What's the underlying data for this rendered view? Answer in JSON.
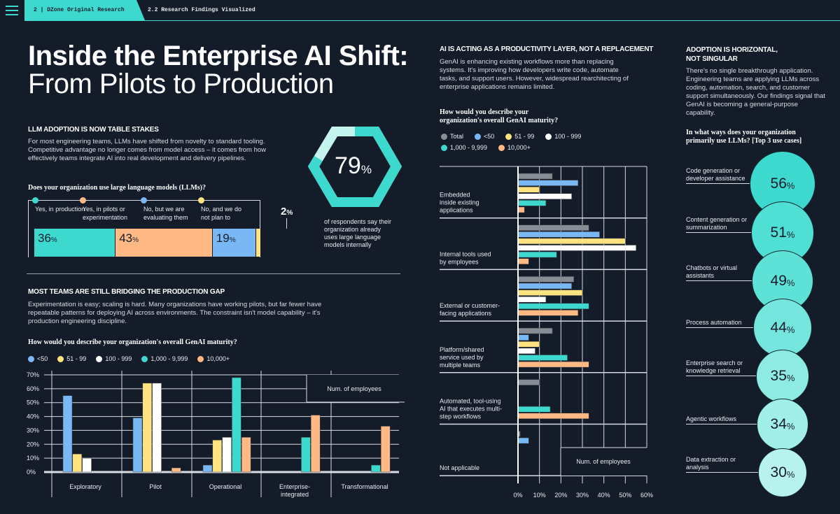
{
  "header": {
    "section_tab": "2 | DZone Original Research",
    "breadcrumb": "2.2 Research Findings Visualized"
  },
  "title": {
    "line1": "Inside the Enterprise AI Shift:",
    "line2": "From Pilots to Production"
  },
  "adoption": {
    "heading": "LLM ADOPTION IS NOW TABLE STAKES",
    "body": "For most engineering teams, LLMs have shifted from novelty to standard tooling. Competitive advantage no longer comes from model access – it comes from how effectively teams integrate AI into real development and delivery pipelines.",
    "question": "Does your organization use large language models (LLMs)?",
    "segments": [
      {
        "label": "Yes, in production",
        "value": 36,
        "color": "#3dd9cf"
      },
      {
        "label": "Yes, in pilots or experimentation",
        "value": 43,
        "color": "#ffb984"
      },
      {
        "label": "No, but we are evaluating them",
        "value": 19,
        "color": "#79b8f5"
      },
      {
        "label": "No, and we do not plan to",
        "value": 2,
        "color": "#ffe380"
      }
    ],
    "stat": {
      "value": "79",
      "unit": "%",
      "caption": "of respondents say their organization already uses large language models internally",
      "fraction": 0.79
    }
  },
  "maturity": {
    "heading": "MOST TEAMS ARE STILL BRIDGING THE PRODUCTION GAP",
    "body": "Experimentation is easy; scaling is hard. Many organizations have working pilots, but far fewer have repeatable patterns for deploying AI across environments. The constraint isn't model capability – it's production engineering discipline.",
    "question": "How would you describe your organization's overall GenAI maturity?"
  },
  "productivity": {
    "heading": "AI IS ACTING AS A PRODUCTIVITY LAYER, NOT A REPLACEMENT",
    "body": "GenAI is enhancing existing workflows more than replacing systems. It's improving how developers write code, automate tasks, and support users. However, widespread rearchitecting of enterprise applications remains limited.",
    "question": "How would you describe your organization's overall GenAI maturity?"
  },
  "horizontal": {
    "heading": "ADOPTION IS HORIZONTAL, NOT SINGULAR",
    "body": "There's no single breakthrough application. Engineering teams are applying LLMs across coding, automation, search, and customer support simultaneously. Our findings signal that GenAI is becoming a general-purpose capability.",
    "question": "In what ways does your organization primarily use LLMs? [Top 3 use cases]"
  },
  "chart_data": [
    {
      "type": "bar",
      "title": "",
      "xlabel": "",
      "ylabel": "",
      "ylim": [
        0,
        70
      ],
      "yticks": [
        "0%",
        "10%",
        "20%",
        "30%",
        "40%",
        "50%",
        "60%",
        "70%"
      ],
      "grid": true,
      "legend_title": "Num. of employees",
      "legend": "top",
      "categories": [
        "Exploratory",
        "Pilot",
        "Operational",
        "Enterprise-integrated",
        "Transformational"
      ],
      "series": [
        {
          "name": "<50",
          "color": "#79b8f5",
          "values": [
            55,
            39,
            5,
            0,
            0
          ]
        },
        {
          "name": "51 - 99",
          "color": "#ffe380",
          "values": [
            13,
            64,
            23,
            0,
            0
          ]
        },
        {
          "name": "100 - 999",
          "color": "#ffffff",
          "values": [
            10,
            64,
            25,
            0,
            0
          ]
        },
        {
          "name": "1,000 - 9,999",
          "color": "#3dd9cf",
          "values": [
            0,
            0,
            68,
            25,
            5
          ]
        },
        {
          "name": "10,000+",
          "color": "#ffb984",
          "values": [
            0,
            3,
            25,
            41,
            33
          ]
        }
      ]
    },
    {
      "type": "bar",
      "orientation": "horizontal",
      "xlim": [
        0,
        60
      ],
      "xticks": [
        "0%",
        "10%",
        "20%",
        "30%",
        "40%",
        "50%",
        "60%"
      ],
      "grid": true,
      "legend_title": "Num. of employees",
      "legend": "top",
      "categories": [
        "Embedded inside existing applications",
        "Internal tools used by employees",
        "External or customer-facing applications",
        "Platform/shared service used by multiple teams",
        "Automated, tool-using AI that executes multi-step workflows",
        "Not applicable"
      ],
      "series": [
        {
          "name": "Total",
          "color": "#888c94",
          "values": [
            16,
            33,
            26,
            16,
            10,
            1
          ]
        },
        {
          "name": "<50",
          "color": "#79b8f5",
          "values": [
            28,
            38,
            25,
            5,
            0,
            5
          ]
        },
        {
          "name": "51 - 99",
          "color": "#ffe380",
          "values": [
            10,
            50,
            30,
            10,
            0,
            0
          ]
        },
        {
          "name": "100 - 999",
          "color": "#ffffff",
          "values": [
            25,
            55,
            13,
            8,
            0,
            0
          ]
        },
        {
          "name": "1,000 - 9,999",
          "color": "#3dd9cf",
          "values": [
            13,
            18,
            33,
            23,
            15,
            0
          ]
        },
        {
          "name": "10,000+",
          "color": "#ffb984",
          "values": [
            3,
            5,
            28,
            33,
            33,
            0
          ]
        }
      ]
    },
    {
      "type": "bubble",
      "categories": [
        "Code generation or developer assistance",
        "Content generation or summarization",
        "Chatbots or virtual assistants",
        "Process automation",
        "Enterprise search or knowledge retrieval",
        "Agentic workflows",
        "Data extraction or analysis"
      ],
      "values": [
        56,
        51,
        49,
        44,
        35,
        34,
        30
      ],
      "colors": [
        "#3dd9cf",
        "#4fdfd5",
        "#5ee2d8",
        "#74e6dd",
        "#8eebe4",
        "#a2eee8",
        "#b8f2ee"
      ]
    }
  ]
}
